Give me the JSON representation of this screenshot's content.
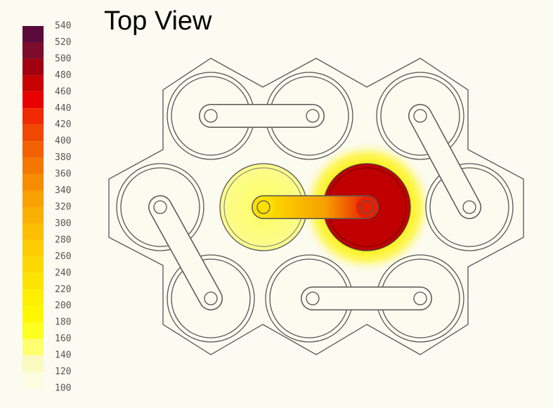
{
  "title": "Top View",
  "colorbar": {
    "ticks": [
      540,
      520,
      500,
      480,
      460,
      440,
      420,
      400,
      380,
      360,
      340,
      320,
      300,
      280,
      260,
      240,
      220,
      200,
      180,
      160,
      140,
      120,
      100
    ],
    "colors": [
      "#5a0a3a",
      "#7c0a2a",
      "#a00010",
      "#c80000",
      "#e80000",
      "#f02a00",
      "#f04800",
      "#f26000",
      "#f47800",
      "#f68c00",
      "#f8a000",
      "#f9b000",
      "#fbbf00",
      "#fccc00",
      "#fdd800",
      "#fde300",
      "#feee00",
      "#fff600",
      "#ffff20",
      "#ffff70",
      "#fafac0",
      "#fcfce0"
    ]
  }
}
